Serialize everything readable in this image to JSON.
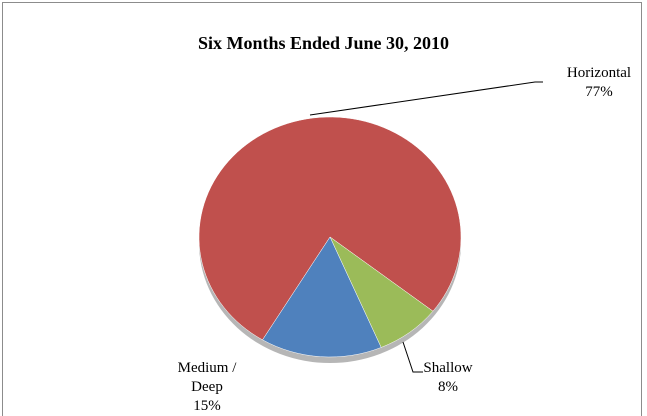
{
  "chart_data": {
    "type": "pie",
    "title": "Six Months Ended June 30, 2010",
    "categories": [
      "Horizontal",
      "Shallow",
      "Medium / Deep"
    ],
    "values": [
      77,
      8,
      15
    ],
    "value_labels": [
      "77%",
      "8%",
      "15%"
    ],
    "colors": [
      "#c0504d",
      "#9bbb59",
      "#4f81bd"
    ]
  }
}
